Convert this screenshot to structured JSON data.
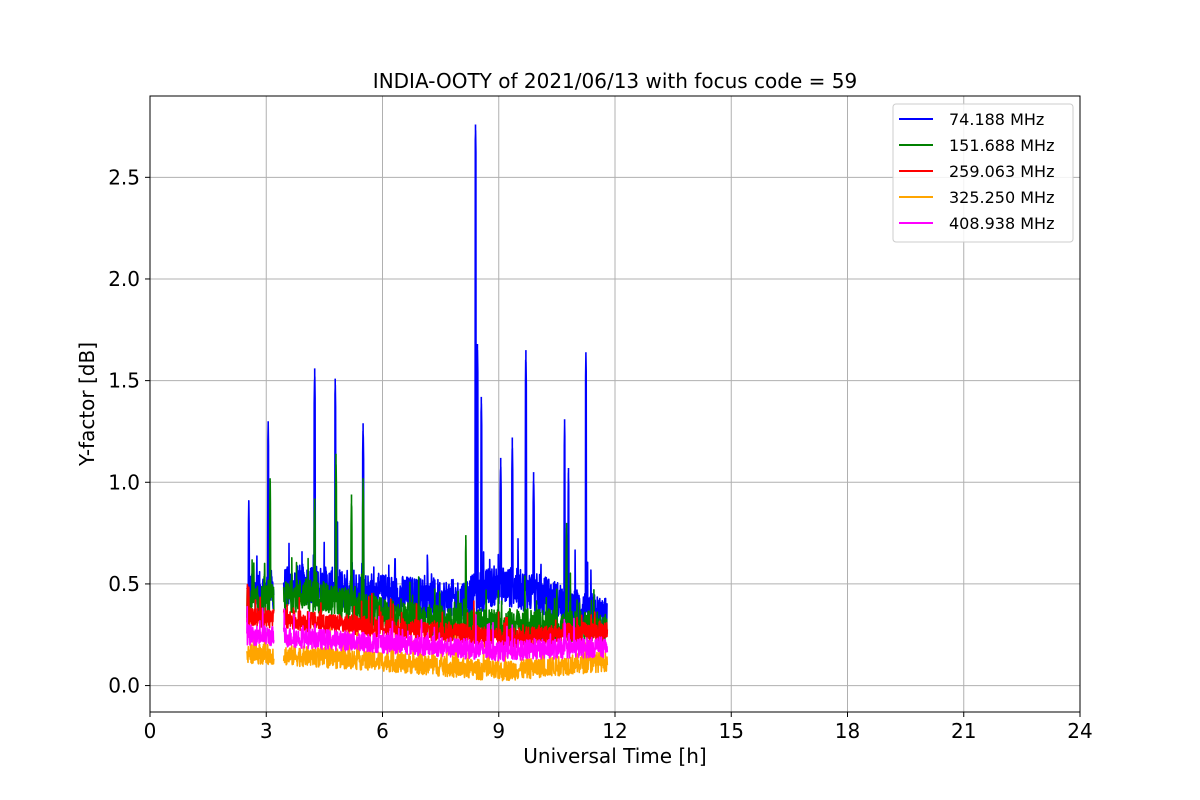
{
  "chart_data": {
    "type": "line",
    "title": "INDIA-OOTY of 2021/06/13 with focus code = 59",
    "xlabel": "Universal Time [h]",
    "ylabel": "Y-factor [dB]",
    "xlim": [
      0,
      24
    ],
    "ylim": [
      -0.13,
      2.9
    ],
    "xticks": [
      0,
      3,
      6,
      9,
      12,
      15,
      18,
      21,
      24
    ],
    "xtick_labels": [
      "0",
      "3",
      "6",
      "9",
      "12",
      "15",
      "18",
      "21",
      "24"
    ],
    "yticks": [
      0.0,
      0.5,
      1.0,
      1.5,
      2.0,
      2.5
    ],
    "ytick_labels": [
      "0.0",
      "0.5",
      "1.0",
      "1.5",
      "2.0",
      "2.5"
    ],
    "grid": true,
    "legend_position": "top-right",
    "x_start": 2.5,
    "x_end": 11.8,
    "gaps": [
      [
        3.2,
        3.45
      ]
    ],
    "series": [
      {
        "name": " 74.188 MHz",
        "color": "#0000ff",
        "baseline": [
          [
            2.5,
            0.45
          ],
          [
            4.0,
            0.5
          ],
          [
            6.0,
            0.45
          ],
          [
            8.0,
            0.42
          ],
          [
            9.0,
            0.5
          ],
          [
            10.0,
            0.45
          ],
          [
            11.8,
            0.33
          ]
        ],
        "noise": 0.1,
        "spikes": [
          [
            2.55,
            0.91
          ],
          [
            3.05,
            1.3
          ],
          [
            4.25,
            1.56
          ],
          [
            4.78,
            1.51
          ],
          [
            5.5,
            1.29
          ],
          [
            8.4,
            2.76
          ],
          [
            8.45,
            1.68
          ],
          [
            8.55,
            1.42
          ],
          [
            9.05,
            1.12
          ],
          [
            9.35,
            1.22
          ],
          [
            9.7,
            1.65
          ],
          [
            10.7,
            1.31
          ],
          [
            10.8,
            1.07
          ],
          [
            11.25,
            1.64
          ],
          [
            9.9,
            1.05
          ]
        ]
      },
      {
        "name": "151.688 MHz",
        "color": "#008000",
        "baseline": [
          [
            2.5,
            0.4
          ],
          [
            4.0,
            0.45
          ],
          [
            6.0,
            0.35
          ],
          [
            8.0,
            0.3
          ],
          [
            10.0,
            0.3
          ],
          [
            11.8,
            0.28
          ]
        ],
        "noise": 0.08,
        "spikes": [
          [
            3.1,
            1.02
          ],
          [
            4.25,
            0.92
          ],
          [
            4.8,
            1.14
          ],
          [
            5.5,
            1.02
          ],
          [
            5.2,
            0.94
          ],
          [
            8.15,
            0.74
          ],
          [
            10.75,
            0.8
          ]
        ]
      },
      {
        "name": "259.063 MHz",
        "color": "#ff0000",
        "baseline": [
          [
            2.5,
            0.34
          ],
          [
            5.0,
            0.3
          ],
          [
            8.0,
            0.26
          ],
          [
            9.0,
            0.23
          ],
          [
            11.8,
            0.27
          ]
        ],
        "noise": 0.05,
        "spikes": []
      },
      {
        "name": "325.250 MHz",
        "color": "#ffa500",
        "baseline": [
          [
            2.5,
            0.16
          ],
          [
            6.0,
            0.12
          ],
          [
            9.0,
            0.07
          ],
          [
            11.8,
            0.12
          ]
        ],
        "noise": 0.05,
        "spikes": []
      },
      {
        "name": "408.938 MHz",
        "color": "#ff00ff",
        "baseline": [
          [
            2.5,
            0.25
          ],
          [
            6.0,
            0.21
          ],
          [
            9.0,
            0.17
          ],
          [
            11.8,
            0.19
          ]
        ],
        "noise": 0.05,
        "spikes": []
      }
    ]
  }
}
